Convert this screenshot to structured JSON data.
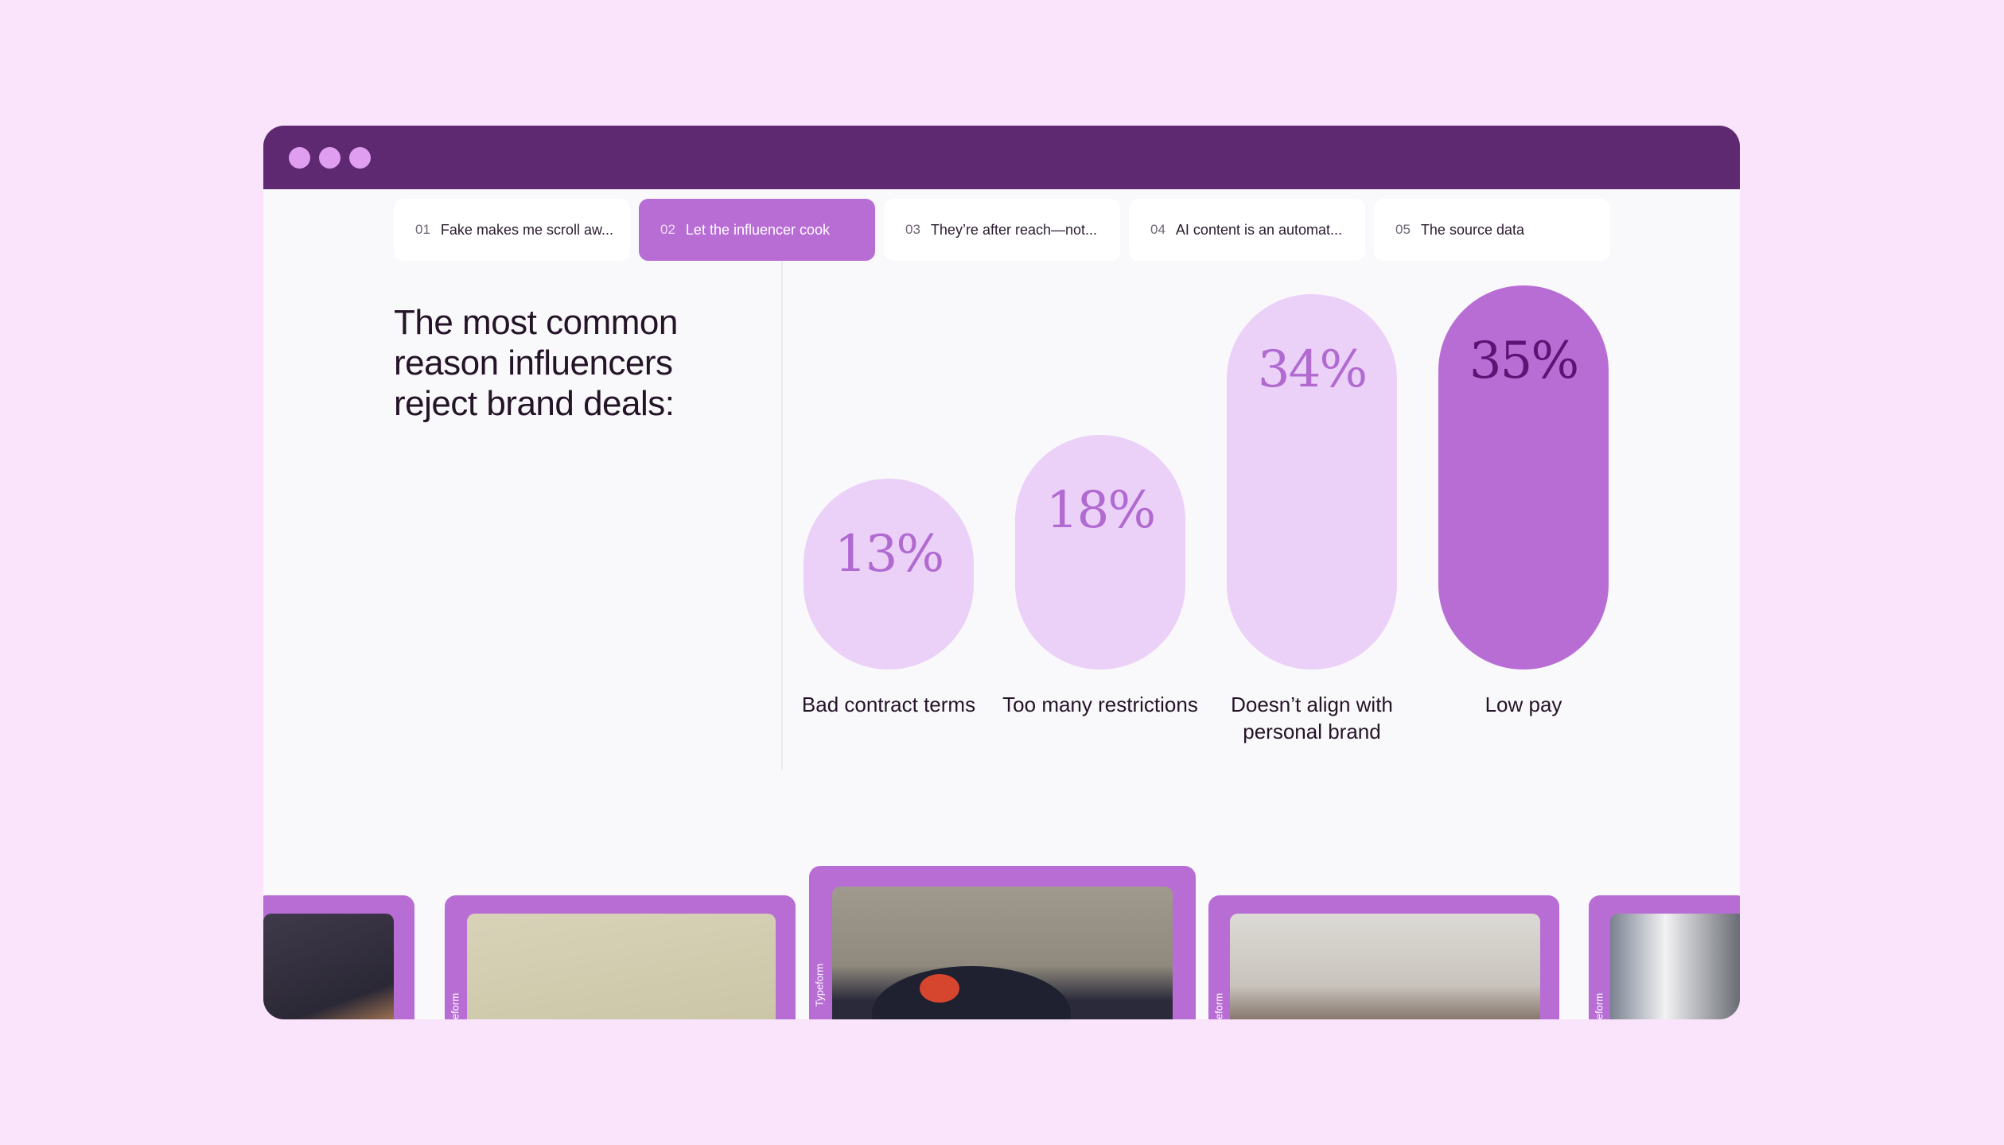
{
  "window": {
    "controls": [
      "close",
      "minimize",
      "maximize"
    ],
    "accent": "#5e2970"
  },
  "tabs": [
    {
      "num": "01",
      "label": "Fake makes me scroll aw...",
      "active": false
    },
    {
      "num": "02",
      "label": "Let the influencer cook",
      "active": true
    },
    {
      "num": "03",
      "label": "They’re after reach—not...",
      "active": false
    },
    {
      "num": "04",
      "label": "AI content is an automat...",
      "active": false
    },
    {
      "num": "05",
      "label": "The source data",
      "active": false
    }
  ],
  "headline": "The most common reason influencers reject brand deals:",
  "chart_data": {
    "type": "bar",
    "title": "The most common reason influencers reject brand deals:",
    "categories": [
      "Bad contract terms",
      "Too many restrictions",
      "Doesn’t align with personal brand",
      "Low pay"
    ],
    "values": [
      13,
      18,
      34,
      35
    ],
    "value_labels": [
      "13%",
      "18%",
      "34%",
      "35%"
    ],
    "unit": "%",
    "ylim": [
      0,
      35
    ],
    "highlight_index": 3,
    "colors": {
      "bar": "#ebd0f8",
      "bar_highlight": "#b86dd5",
      "label": "#b06ad0",
      "label_highlight": "#5b1474"
    }
  },
  "carousel": {
    "brand_tag": "Typeform",
    "active_index": 2
  }
}
